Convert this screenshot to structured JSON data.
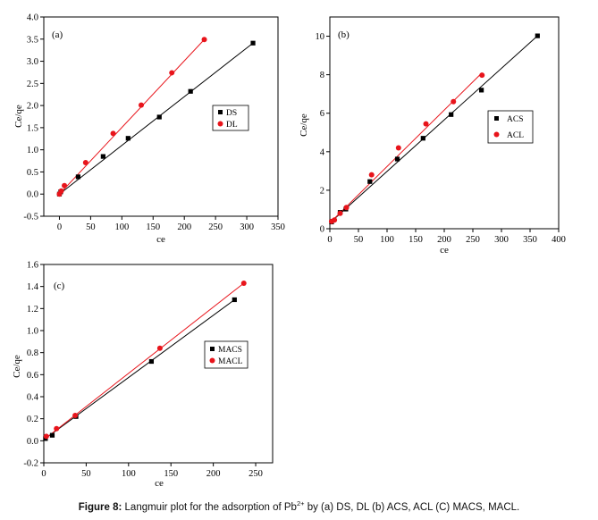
{
  "caption": {
    "label": "Figure 8:",
    "text_before": " Langmuir plot for the adsorption of Pb",
    "superscript": "2+",
    "text_after": " by (a) DS, DL (b) ACS, ACL (C) MACS, MACL."
  },
  "colors": {
    "black_series": "#000000",
    "red_series": "#e8141b"
  },
  "chart_data": [
    {
      "type": "scatter",
      "panel_label": "(a)",
      "xlabel": "ce",
      "ylabel": "Ce/qe",
      "xlim": [
        -25,
        350
      ],
      "ylim": [
        -0.5,
        4.0
      ],
      "xticks": [
        0,
        50,
        100,
        150,
        200,
        250,
        300,
        350
      ],
      "yticks": [
        -0.5,
        0.0,
        0.5,
        1.0,
        1.5,
        2.0,
        2.5,
        3.0,
        3.5,
        4.0
      ],
      "ytick_labels": [
        "-0.5",
        "0.0",
        "0.5",
        "1.0",
        "1.5",
        "2.0",
        "2.5",
        "3.0",
        "3.5",
        "4.0"
      ],
      "grid": false,
      "legend_position": "right",
      "series": [
        {
          "name": "DS",
          "marker": "square",
          "color": "#000000",
          "x": [
            0,
            2,
            30,
            70,
            110,
            160,
            210,
            310
          ],
          "y": [
            0.0,
            0.05,
            0.39,
            0.85,
            1.26,
            1.74,
            2.32,
            3.41
          ],
          "fit": [
            [
              0,
              0.0
            ],
            [
              310,
              3.41
            ]
          ]
        },
        {
          "name": "DL",
          "marker": "circle",
          "color": "#e8141b",
          "x": [
            0,
            3,
            8,
            42,
            86,
            131,
            180,
            232
          ],
          "y": [
            0.0,
            0.07,
            0.19,
            0.71,
            1.37,
            2.01,
            2.74,
            3.49
          ],
          "fit": [
            [
              0,
              0.0
            ],
            [
              232,
              3.49
            ]
          ]
        }
      ]
    },
    {
      "type": "scatter",
      "panel_label": "(b)",
      "xlabel": "ce",
      "ylabel": "Ce/qe",
      "xlim": [
        0,
        400
      ],
      "ylim": [
        0,
        11
      ],
      "xticks": [
        0,
        50,
        100,
        150,
        200,
        250,
        300,
        350,
        400
      ],
      "yticks": [
        0,
        2,
        4,
        6,
        8,
        10
      ],
      "ytick_labels": [
        "0",
        "2",
        "4",
        "6",
        "8",
        "10"
      ],
      "grid": false,
      "legend_position": "right",
      "series": [
        {
          "name": "ACS",
          "marker": "square",
          "color": "#000000",
          "x": [
            3,
            18,
            28,
            70,
            118,
            163,
            212,
            265,
            363
          ],
          "y": [
            0.35,
            0.85,
            1.02,
            2.45,
            3.62,
            4.7,
            5.93,
            7.2,
            10.02
          ],
          "fit": [
            [
              0,
              0.3
            ],
            [
              363,
              10.02
            ]
          ]
        },
        {
          "name": "ACL",
          "marker": "circle",
          "color": "#e8141b",
          "x": [
            3,
            8,
            18,
            29,
            73,
            120,
            168,
            216,
            266
          ],
          "y": [
            0.38,
            0.45,
            0.8,
            1.1,
            2.8,
            4.2,
            5.45,
            6.6,
            7.98
          ],
          "fit": [
            [
              0,
              0.3
            ],
            [
              266,
              8.1
            ]
          ]
        }
      ]
    },
    {
      "type": "scatter",
      "panel_label": "(c)",
      "xlabel": "ce",
      "ylabel": "Ce/qe",
      "xlim": [
        0,
        270
      ],
      "ylim": [
        -0.2,
        1.6
      ],
      "xticks": [
        0,
        50,
        100,
        150,
        200,
        250
      ],
      "yticks": [
        -0.2,
        0.0,
        0.2,
        0.4,
        0.6,
        0.8,
        1.0,
        1.2,
        1.4,
        1.6
      ],
      "ytick_labels": [
        "-0.2",
        "0.0",
        "0.2",
        "0.4",
        "0.6",
        "0.8",
        "1.0",
        "1.2",
        "1.4",
        "1.6"
      ],
      "grid": false,
      "legend_position": "right",
      "series": [
        {
          "name": "MACS",
          "marker": "square",
          "color": "#000000",
          "x": [
            2,
            10,
            38,
            127,
            225
          ],
          "y": [
            0.02,
            0.05,
            0.22,
            0.72,
            1.28
          ],
          "fit": [
            [
              0,
              0.01
            ],
            [
              225,
              1.28
            ]
          ]
        },
        {
          "name": "MACL",
          "marker": "circle",
          "color": "#e8141b",
          "x": [
            3,
            15,
            37,
            137,
            236
          ],
          "y": [
            0.04,
            0.11,
            0.23,
            0.84,
            1.43
          ],
          "fit": [
            [
              0,
              0.01
            ],
            [
              236,
              1.43
            ]
          ]
        }
      ]
    }
  ]
}
